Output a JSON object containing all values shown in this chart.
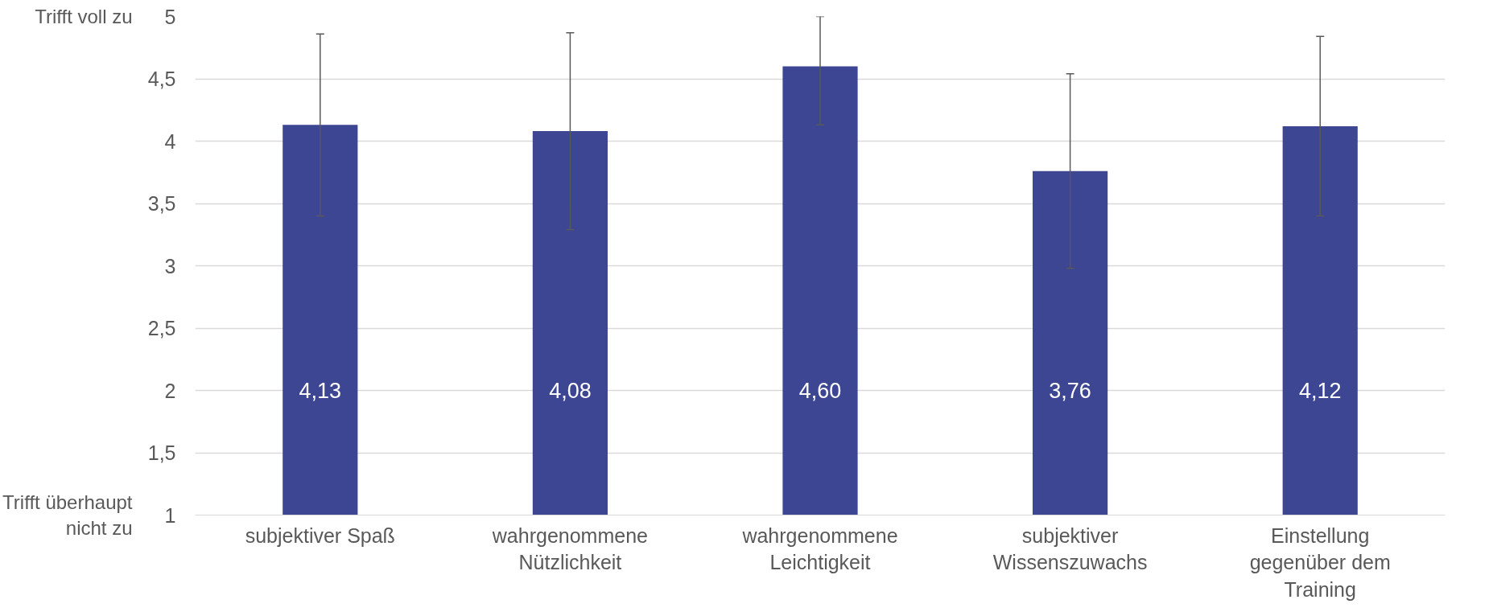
{
  "chart_data": {
    "type": "bar",
    "categories": [
      "subjektiver Spaß",
      "wahrgenommene Nützlichkeit",
      "wahrgenommene Leichtigkeit",
      "subjektiver Wissenszuwachs",
      "Einstellung gegenüber dem Training"
    ],
    "values": [
      4.13,
      4.08,
      4.6,
      3.76,
      4.12
    ],
    "value_labels": [
      "4,13",
      "4,08",
      "4,60",
      "3,76",
      "4,12"
    ],
    "errors": [
      0.73,
      0.79,
      [
        4.13,
        5
      ],
      0.78,
      0.72
    ],
    "color": "#3c4693",
    "ylim": [
      1,
      5
    ],
    "yticks": [
      1,
      {
        "value": 1.5,
        "label": "1,5"
      },
      2,
      {
        "value": 2.5,
        "label": "2,5"
      },
      3,
      {
        "value": 3.5,
        "label": "3,5"
      },
      4,
      {
        "value": 4.5,
        "label": "4,5"
      },
      5
    ],
    "grid": "y",
    "annotations": [
      "Trifft voll zu",
      "Trifft überhaupt nicht zu"
    ]
  }
}
